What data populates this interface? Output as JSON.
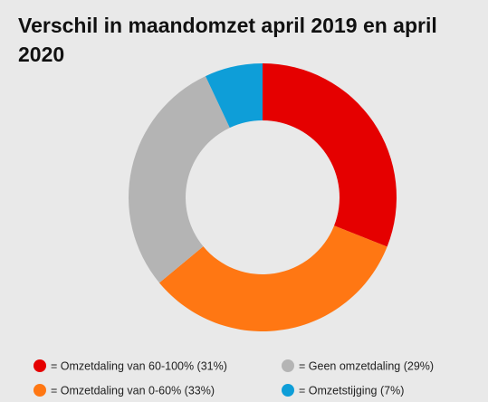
{
  "chart_data": {
    "type": "donut",
    "title": "Verschil in maandomzet april 2019 en april 2020",
    "series": [
      {
        "name": "= Omzetdaling van 60-100% (31%)",
        "color": "#e50000",
        "values": [
          31
        ]
      },
      {
        "name": "= Omzetdaling van 0-60% (33%)",
        "color": "#ff7713",
        "values": [
          33
        ]
      },
      {
        "name": "= Geen omzetdaling (29%)",
        "color": "#b4b4b4",
        "values": [
          29
        ]
      },
      {
        "name": "= Omzetstijging (7%)",
        "color": "#0e9ed8",
        "values": [
          7
        ]
      }
    ],
    "legend": "bottom"
  }
}
